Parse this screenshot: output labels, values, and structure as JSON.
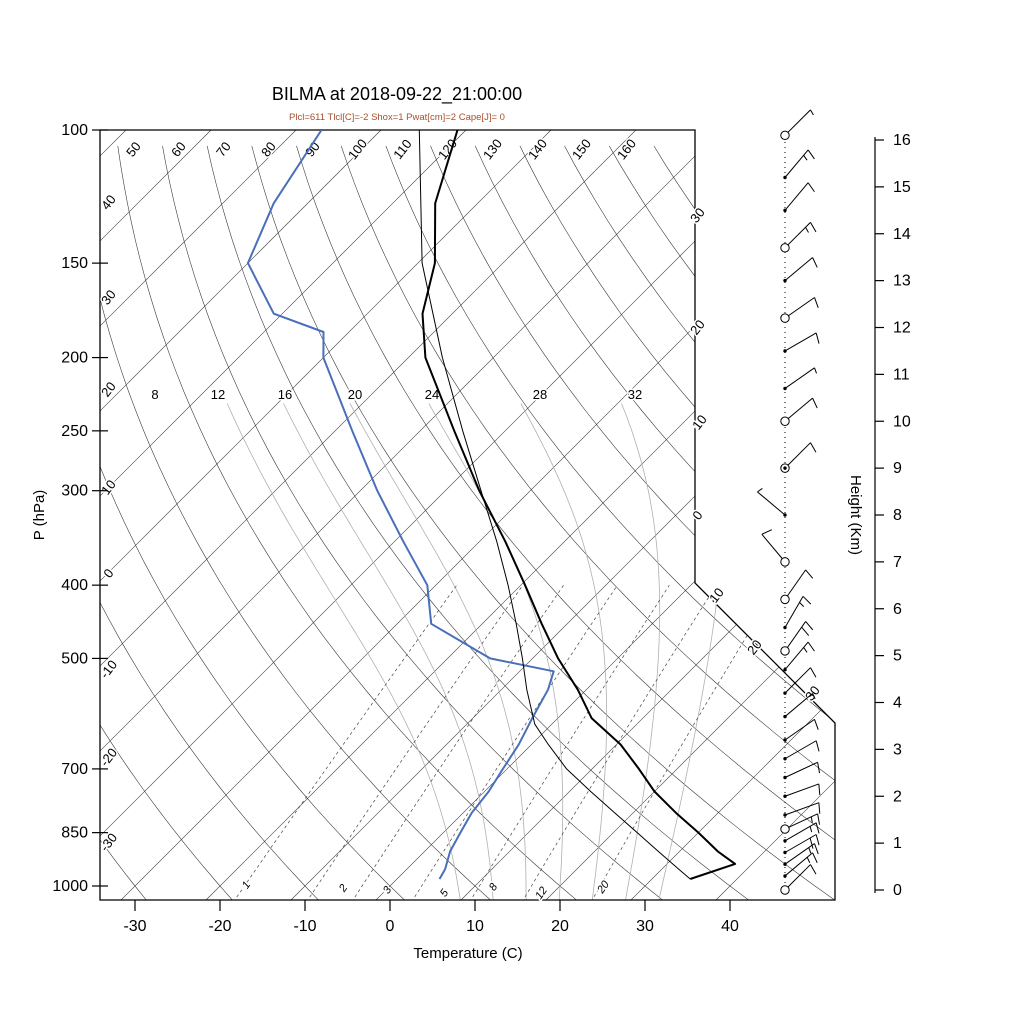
{
  "title": "BILMA at 2018-09-22_21:00:00",
  "subtitle": "Plcl=611 Tlcl[C]=-2 Shox=1 Pwat[cm]=2 Cape[J]= 0",
  "colors": {
    "temperature_line": "#000000",
    "dewpoint_line": "#4a6fba",
    "parcel_line": "#000000",
    "subtitle_text": "#a8502a",
    "grid_line": "#3a3a3a",
    "moist_adiabat": "#b0b0b0"
  },
  "chart_data": {
    "type": "line",
    "subtype": "skew-t-log-p-sounding",
    "title": "BILMA at 2018-09-22_21:00:00",
    "subtitle": "Plcl=611 Tlcl[C]=-2 Shox=1 Pwat[cm]=2 Cape[J]= 0",
    "xlabel": "Temperature (C)",
    "ylabel_left": "P (hPa)",
    "ylabel_right": "Height (Km)",
    "pressure_ticks": [
      100,
      150,
      200,
      250,
      300,
      400,
      500,
      700,
      850,
      1000
    ],
    "temp_ticks": [
      -30,
      -20,
      -10,
      0,
      10,
      20,
      30,
      40
    ],
    "height_ticks_km": [
      0,
      1,
      2,
      3,
      4,
      5,
      6,
      7,
      8,
      9,
      10,
      11,
      12,
      13,
      14,
      15,
      16
    ],
    "isotherm_step_c": 10,
    "dry_adiabat_values_c": [
      -30,
      -20,
      -10,
      0,
      10,
      20,
      30,
      40,
      50,
      60,
      70,
      80,
      90,
      100,
      110,
      120,
      130,
      140,
      150,
      160
    ],
    "dry_adiabat_labels_top": [
      "50",
      "60",
      "70",
      "80",
      "90",
      "100",
      "110",
      "120",
      "130",
      "140",
      "150",
      "160"
    ],
    "dry_adiabat_labels_left": [
      "40",
      "30",
      "20",
      "10",
      "0",
      "-10",
      "-20",
      "-30"
    ],
    "isotherm_labels_right_upper": [
      "30",
      "20",
      "10",
      "0"
    ],
    "isotherm_labels_right_lower": [
      "10",
      "20",
      "30"
    ],
    "moist_adiabat_values_c": [
      8,
      12,
      16,
      20,
      24,
      28,
      32
    ],
    "moist_adiabat_labels": [
      "8",
      "12",
      "16",
      "20",
      "24",
      "28",
      "32"
    ],
    "mixing_ratio_values_gkg": [
      1,
      2,
      3,
      5,
      8,
      12,
      20
    ],
    "mixing_ratio_labels": [
      "1",
      "2",
      "3",
      "5",
      "8",
      "12",
      "20"
    ],
    "series": [
      {
        "name": "temperature",
        "color": "#000000",
        "width": 2,
        "points": [
          [
            979,
            34.5
          ],
          [
            935,
            38
          ],
          [
            900,
            34.5
          ],
          [
            850,
            30
          ],
          [
            800,
            25
          ],
          [
            750,
            20
          ],
          [
            700,
            15.5
          ],
          [
            650,
            10.5
          ],
          [
            600,
            4
          ],
          [
            550,
            -1
          ],
          [
            500,
            -7
          ],
          [
            450,
            -13
          ],
          [
            400,
            -19.5
          ],
          [
            350,
            -27
          ],
          [
            300,
            -36
          ],
          [
            250,
            -46
          ],
          [
            200,
            -58
          ],
          [
            175,
            -63.5
          ],
          [
            150,
            -68
          ],
          [
            125,
            -75
          ],
          [
            100,
            -81
          ]
        ]
      },
      {
        "name": "dewpoint",
        "color": "#4a6fba",
        "width": 2,
        "points": [
          [
            979,
            5
          ],
          [
            950,
            4.5
          ],
          [
            900,
            3
          ],
          [
            850,
            2
          ],
          [
            800,
            1
          ],
          [
            750,
            0.5
          ],
          [
            700,
            -0.5
          ],
          [
            650,
            -1.5
          ],
          [
            600,
            -3
          ],
          [
            550,
            -4.5
          ],
          [
            520,
            -6
          ],
          [
            500,
            -15
          ],
          [
            450,
            -26
          ],
          [
            400,
            -31
          ],
          [
            350,
            -39
          ],
          [
            300,
            -48
          ],
          [
            250,
            -58
          ],
          [
            200,
            -70
          ],
          [
            185,
            -73
          ],
          [
            175,
            -81
          ],
          [
            150,
            -90
          ],
          [
            125,
            -94
          ],
          [
            100,
            -97
          ]
        ]
      },
      {
        "name": "parcel",
        "color": "#000000",
        "width": 1,
        "points": [
          [
            979,
            34.5
          ],
          [
            950,
            32
          ],
          [
            900,
            27.5
          ],
          [
            850,
            22.8
          ],
          [
            800,
            17.8
          ],
          [
            750,
            12.5
          ],
          [
            700,
            7
          ],
          [
            650,
            2
          ],
          [
            611,
            -2
          ],
          [
            550,
            -7
          ],
          [
            500,
            -11.2
          ],
          [
            450,
            -16
          ],
          [
            400,
            -21.5
          ],
          [
            350,
            -28
          ],
          [
            300,
            -35.8
          ],
          [
            250,
            -45
          ],
          [
            200,
            -56
          ],
          [
            150,
            -69.5
          ],
          [
            100,
            -85.5
          ]
        ]
      }
    ],
    "wind_barbs": [
      {
        "km": 0,
        "dir_deg": 45,
        "speed_kt": 10,
        "marker": "circle"
      },
      {
        "km": 0.3,
        "dir_deg": 50,
        "speed_kt": 15,
        "marker": "dot"
      },
      {
        "km": 0.55,
        "dir_deg": 55,
        "speed_kt": 15,
        "marker": "dot"
      },
      {
        "km": 0.8,
        "dir_deg": 60,
        "speed_kt": 20,
        "marker": "dot"
      },
      {
        "km": 1.05,
        "dir_deg": 60,
        "speed_kt": 15,
        "marker": "dot"
      },
      {
        "km": 1.3,
        "dir_deg": 65,
        "speed_kt": 15,
        "marker": "circle"
      },
      {
        "km": 1.6,
        "dir_deg": 70,
        "speed_kt": 10,
        "marker": "dot"
      },
      {
        "km": 2,
        "dir_deg": 70,
        "speed_kt": 10,
        "marker": "dot"
      },
      {
        "km": 2.4,
        "dir_deg": 65,
        "speed_kt": 10,
        "marker": "dot"
      },
      {
        "km": 2.8,
        "dir_deg": 60,
        "speed_kt": 10,
        "marker": "dot"
      },
      {
        "km": 3.2,
        "dir_deg": 55,
        "speed_kt": 10,
        "marker": "dot"
      },
      {
        "km": 3.7,
        "dir_deg": 50,
        "speed_kt": 5,
        "marker": "dot"
      },
      {
        "km": 4.2,
        "dir_deg": 45,
        "speed_kt": 10,
        "marker": "dot"
      },
      {
        "km": 4.7,
        "dir_deg": 40,
        "speed_kt": 15,
        "marker": "dot"
      },
      {
        "km": 5.1,
        "dir_deg": 35,
        "speed_kt": 20,
        "marker": "circle"
      },
      {
        "km": 5.6,
        "dir_deg": 30,
        "speed_kt": 15,
        "marker": "dot"
      },
      {
        "km": 6.2,
        "dir_deg": 35,
        "speed_kt": 10,
        "marker": "circle"
      },
      {
        "km": 7,
        "dir_deg": 320,
        "speed_kt": 10,
        "marker": "circle"
      },
      {
        "km": 8,
        "dir_deg": 310,
        "speed_kt": 5,
        "marker": "dot"
      },
      {
        "km": 9,
        "dir_deg": 45,
        "speed_kt": 10,
        "marker": "circled-dot"
      },
      {
        "km": 10,
        "dir_deg": 50,
        "speed_kt": 10,
        "marker": "circle"
      },
      {
        "km": 10.7,
        "dir_deg": 55,
        "speed_kt": 5,
        "marker": "dot"
      },
      {
        "km": 11.5,
        "dir_deg": 60,
        "speed_kt": 10,
        "marker": "dot"
      },
      {
        "km": 12.2,
        "dir_deg": 55,
        "speed_kt": 10,
        "marker": "circle"
      },
      {
        "km": 13,
        "dir_deg": 50,
        "speed_kt": 10,
        "marker": "dot"
      },
      {
        "km": 13.7,
        "dir_deg": 45,
        "speed_kt": 15,
        "marker": "circle"
      },
      {
        "km": 14.5,
        "dir_deg": 40,
        "speed_kt": 10,
        "marker": "dot"
      },
      {
        "km": 15.2,
        "dir_deg": 40,
        "speed_kt": 15,
        "marker": "dot"
      },
      {
        "km": 16.1,
        "dir_deg": 45,
        "speed_kt": 5,
        "marker": "circle"
      }
    ]
  }
}
